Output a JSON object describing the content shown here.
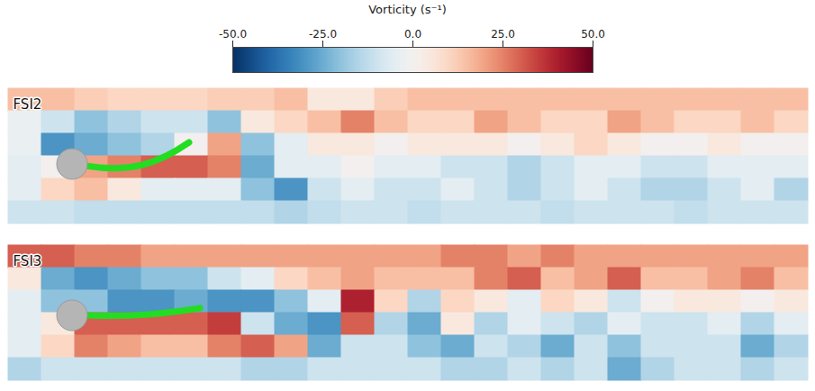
{
  "chart_data": {
    "type": "heatmap",
    "title": "Vorticity (s⁻¹)",
    "tick_labels": false,
    "colorbar": {
      "range": [
        -50,
        50
      ],
      "ticks": [
        {
          "value": -50,
          "label": "-50.0"
        },
        {
          "value": -25,
          "label": "-25.0"
        },
        {
          "value": 0,
          "label": "0.0"
        },
        {
          "value": 25,
          "label": "25.0"
        },
        {
          "value": 50,
          "label": "50.0"
        }
      ]
    },
    "panels": [
      {
        "label": "FSI2",
        "cells": [
          [
            15,
            15,
            12,
            10,
            10,
            10,
            12,
            12,
            15,
            5,
            5,
            12,
            15,
            15,
            15,
            15,
            15,
            15,
            15,
            15,
            15,
            15,
            15,
            15
          ],
          [
            -3,
            -10,
            -20,
            -15,
            -10,
            -10,
            -20,
            5,
            10,
            15,
            25,
            15,
            10,
            10,
            20,
            15,
            10,
            10,
            20,
            15,
            10,
            10,
            15,
            10
          ],
          [
            -3,
            -30,
            -25,
            -20,
            -15,
            0,
            20,
            -20,
            -5,
            5,
            5,
            0,
            5,
            5,
            5,
            0,
            5,
            10,
            5,
            0,
            0,
            5,
            0,
            0
          ],
          [
            -5,
            0,
            20,
            25,
            30,
            30,
            25,
            -25,
            -5,
            -5,
            0,
            -5,
            -5,
            -10,
            -10,
            -15,
            -10,
            -5,
            -5,
            -10,
            -10,
            -5,
            -5,
            -5
          ],
          [
            -5,
            10,
            15,
            5,
            -5,
            -5,
            -5,
            -20,
            -30,
            -10,
            -5,
            -10,
            -10,
            -5,
            -10,
            -15,
            -10,
            -5,
            -10,
            -15,
            -15,
            -10,
            -5,
            -15
          ],
          [
            -10,
            -10,
            -12,
            -12,
            -12,
            -12,
            -12,
            -12,
            -15,
            -12,
            -10,
            -10,
            -12,
            -10,
            -10,
            -10,
            -12,
            -10,
            -10,
            -10,
            -12,
            -10,
            -10,
            -10
          ]
        ]
      },
      {
        "label": "FSI3",
        "cells": [
          [
            30,
            30,
            25,
            25,
            20,
            20,
            20,
            20,
            20,
            20,
            20,
            20,
            20,
            25,
            25,
            20,
            25,
            20,
            20,
            20,
            20,
            20,
            20,
            20
          ],
          [
            5,
            -25,
            -30,
            -25,
            -20,
            -20,
            -10,
            -5,
            10,
            15,
            20,
            15,
            15,
            15,
            25,
            30,
            15,
            20,
            30,
            15,
            15,
            20,
            25,
            15
          ],
          [
            -5,
            -20,
            -20,
            -30,
            -30,
            -25,
            -30,
            -30,
            -20,
            -5,
            40,
            10,
            -15,
            10,
            5,
            -5,
            10,
            5,
            -10,
            0,
            5,
            5,
            0,
            5
          ],
          [
            -5,
            5,
            30,
            30,
            30,
            30,
            35,
            -10,
            -25,
            -30,
            30,
            -15,
            -25,
            5,
            -15,
            -5,
            -10,
            -15,
            -5,
            -10,
            -10,
            -5,
            -15,
            -5
          ],
          [
            -5,
            10,
            25,
            20,
            15,
            15,
            25,
            30,
            20,
            -25,
            -10,
            -10,
            -20,
            -25,
            -10,
            -15,
            -25,
            -10,
            -20,
            -10,
            -10,
            -10,
            -25,
            -15
          ],
          [
            -15,
            -10,
            -10,
            -10,
            -10,
            -10,
            -10,
            -15,
            -15,
            -10,
            -10,
            -10,
            -10,
            -15,
            -15,
            -10,
            -15,
            -10,
            -25,
            -15,
            -10,
            -10,
            -15,
            -10
          ]
        ]
      }
    ]
  }
}
